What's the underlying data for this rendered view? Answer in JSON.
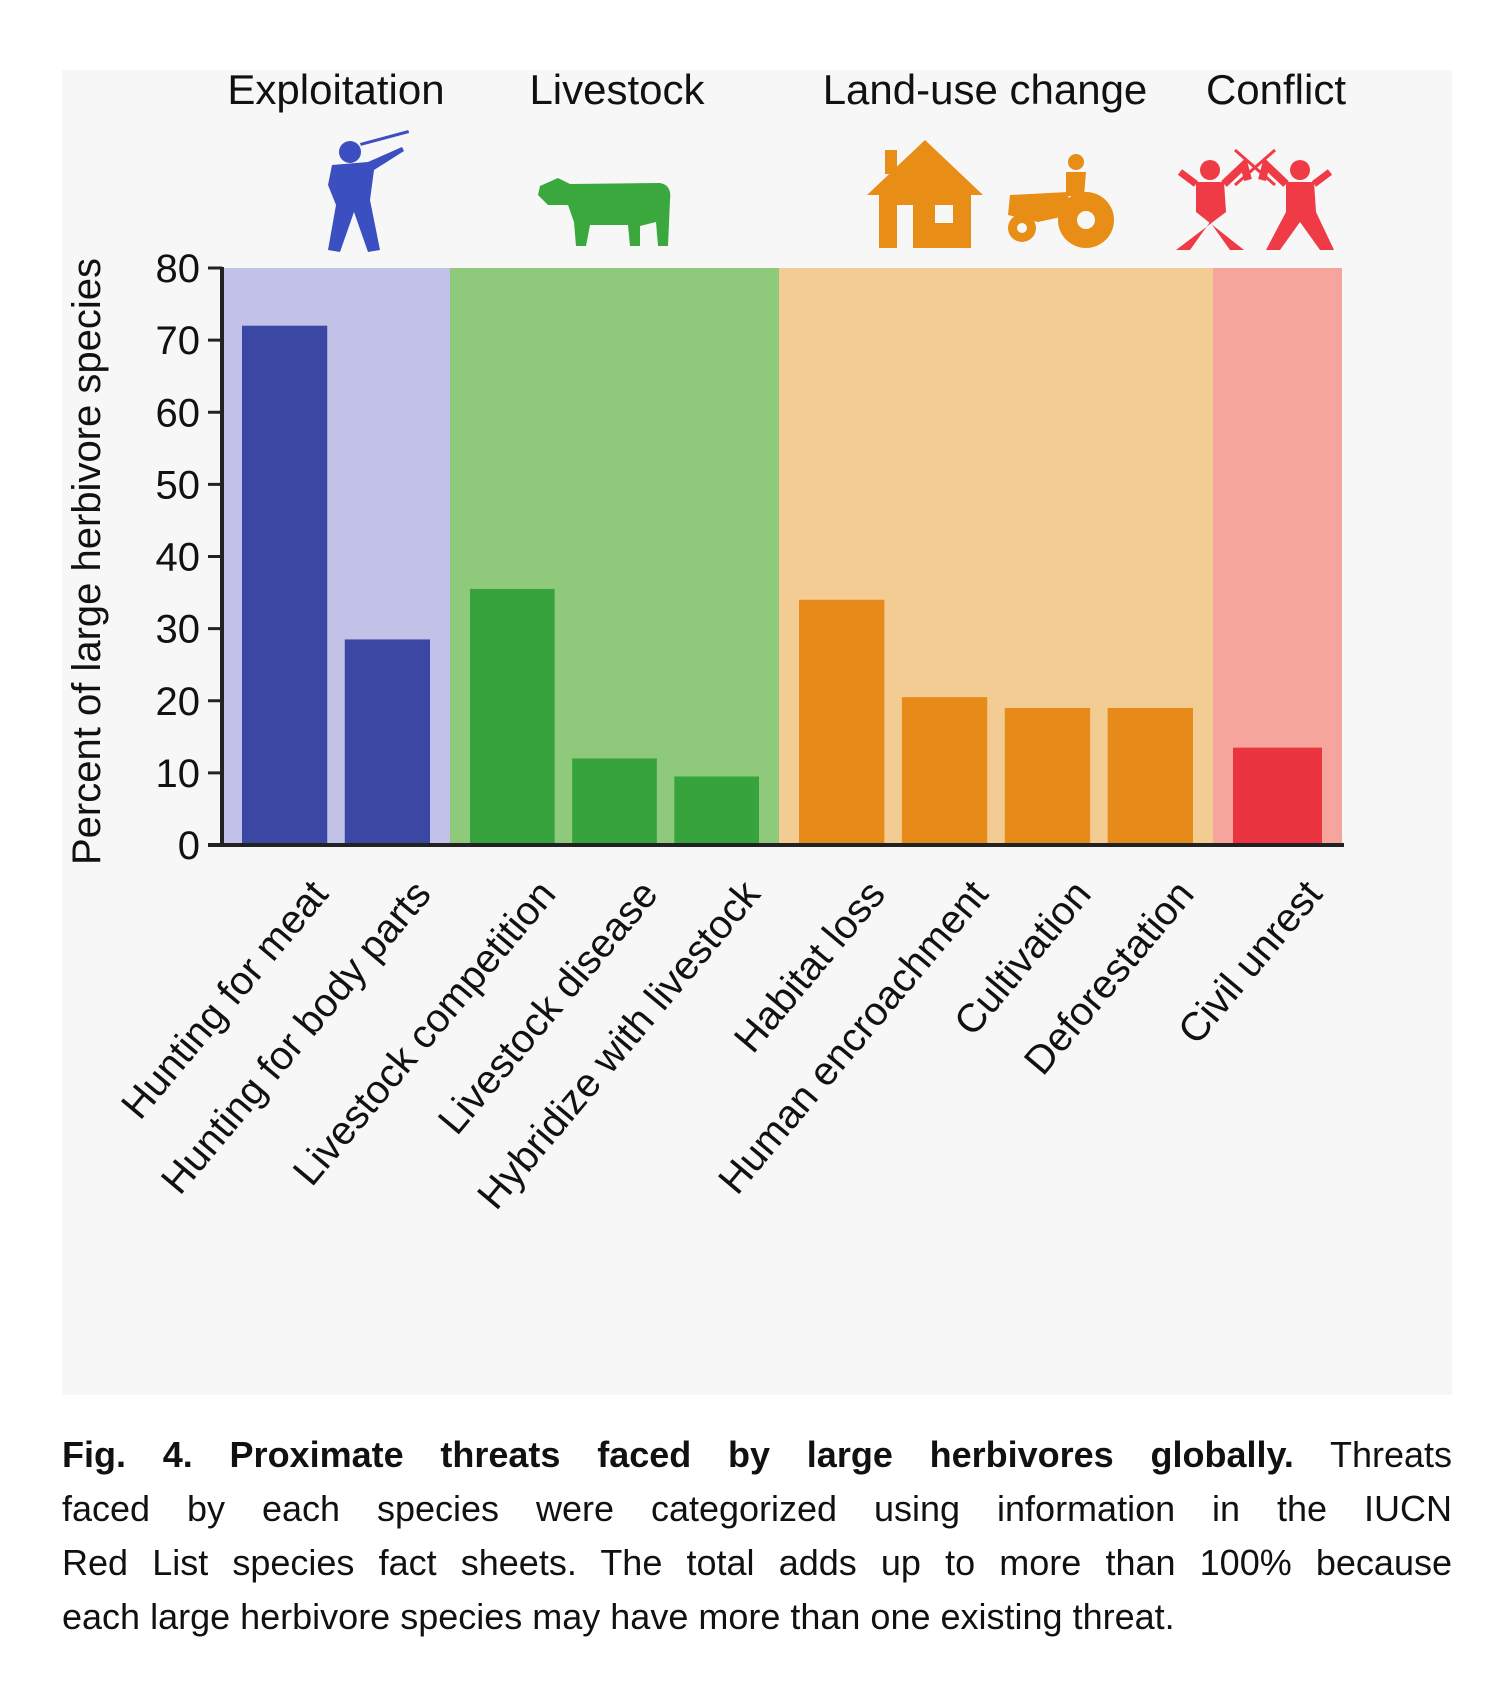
{
  "chart_data": {
    "type": "bar",
    "ylabel": "Percent of large herbivore species",
    "ylim": [
      0,
      80
    ],
    "yticks": [
      0,
      10,
      20,
      30,
      40,
      50,
      60,
      70,
      80
    ],
    "groups": [
      {
        "name": "Exploitation",
        "icon": "hunter-icon",
        "bg_color": "#c2c2e8",
        "bar_color": "#3a48a4",
        "icon_color": "#3b4fc0",
        "categories": [
          "Hunting for meat",
          "Hunting for body parts"
        ],
        "values": [
          72,
          28.5
        ]
      },
      {
        "name": "Livestock",
        "icon": "cow-icon",
        "bg_color": "#8ec97c",
        "bar_color": "#37a33c",
        "icon_color": "#3aa83d",
        "categories": [
          "Livestock competition",
          "Livestock disease",
          "Hybridize with livestock"
        ],
        "values": [
          35.5,
          12,
          9.5
        ]
      },
      {
        "name": "Land-use change",
        "icon": "house-tractor-icon",
        "bg_color": "#f3cc93",
        "bar_color": "#e68b19",
        "icon_color": "#e88d16",
        "categories": [
          "Habitat loss",
          "Human encroachment",
          "Cultivation",
          "Deforestation"
        ],
        "values": [
          34,
          20.5,
          19,
          19
        ]
      },
      {
        "name": "Conflict",
        "icon": "fencers-icon",
        "bg_color": "#f5a59b",
        "bar_color": "#ea3440",
        "icon_color": "#ef3b46",
        "categories": [
          "Civil unrest"
        ],
        "values": [
          13.5
        ]
      }
    ]
  },
  "caption": {
    "bold": "Fig. 4. Proximate threats faced by large herbivores globally.",
    "lines": [
      " Threats",
      "faced by each species were categorized using information in the IUCN",
      "Red List species fact sheets. The total adds up to more than 100% because",
      "each large herbivore species may have more than one existing threat."
    ]
  }
}
